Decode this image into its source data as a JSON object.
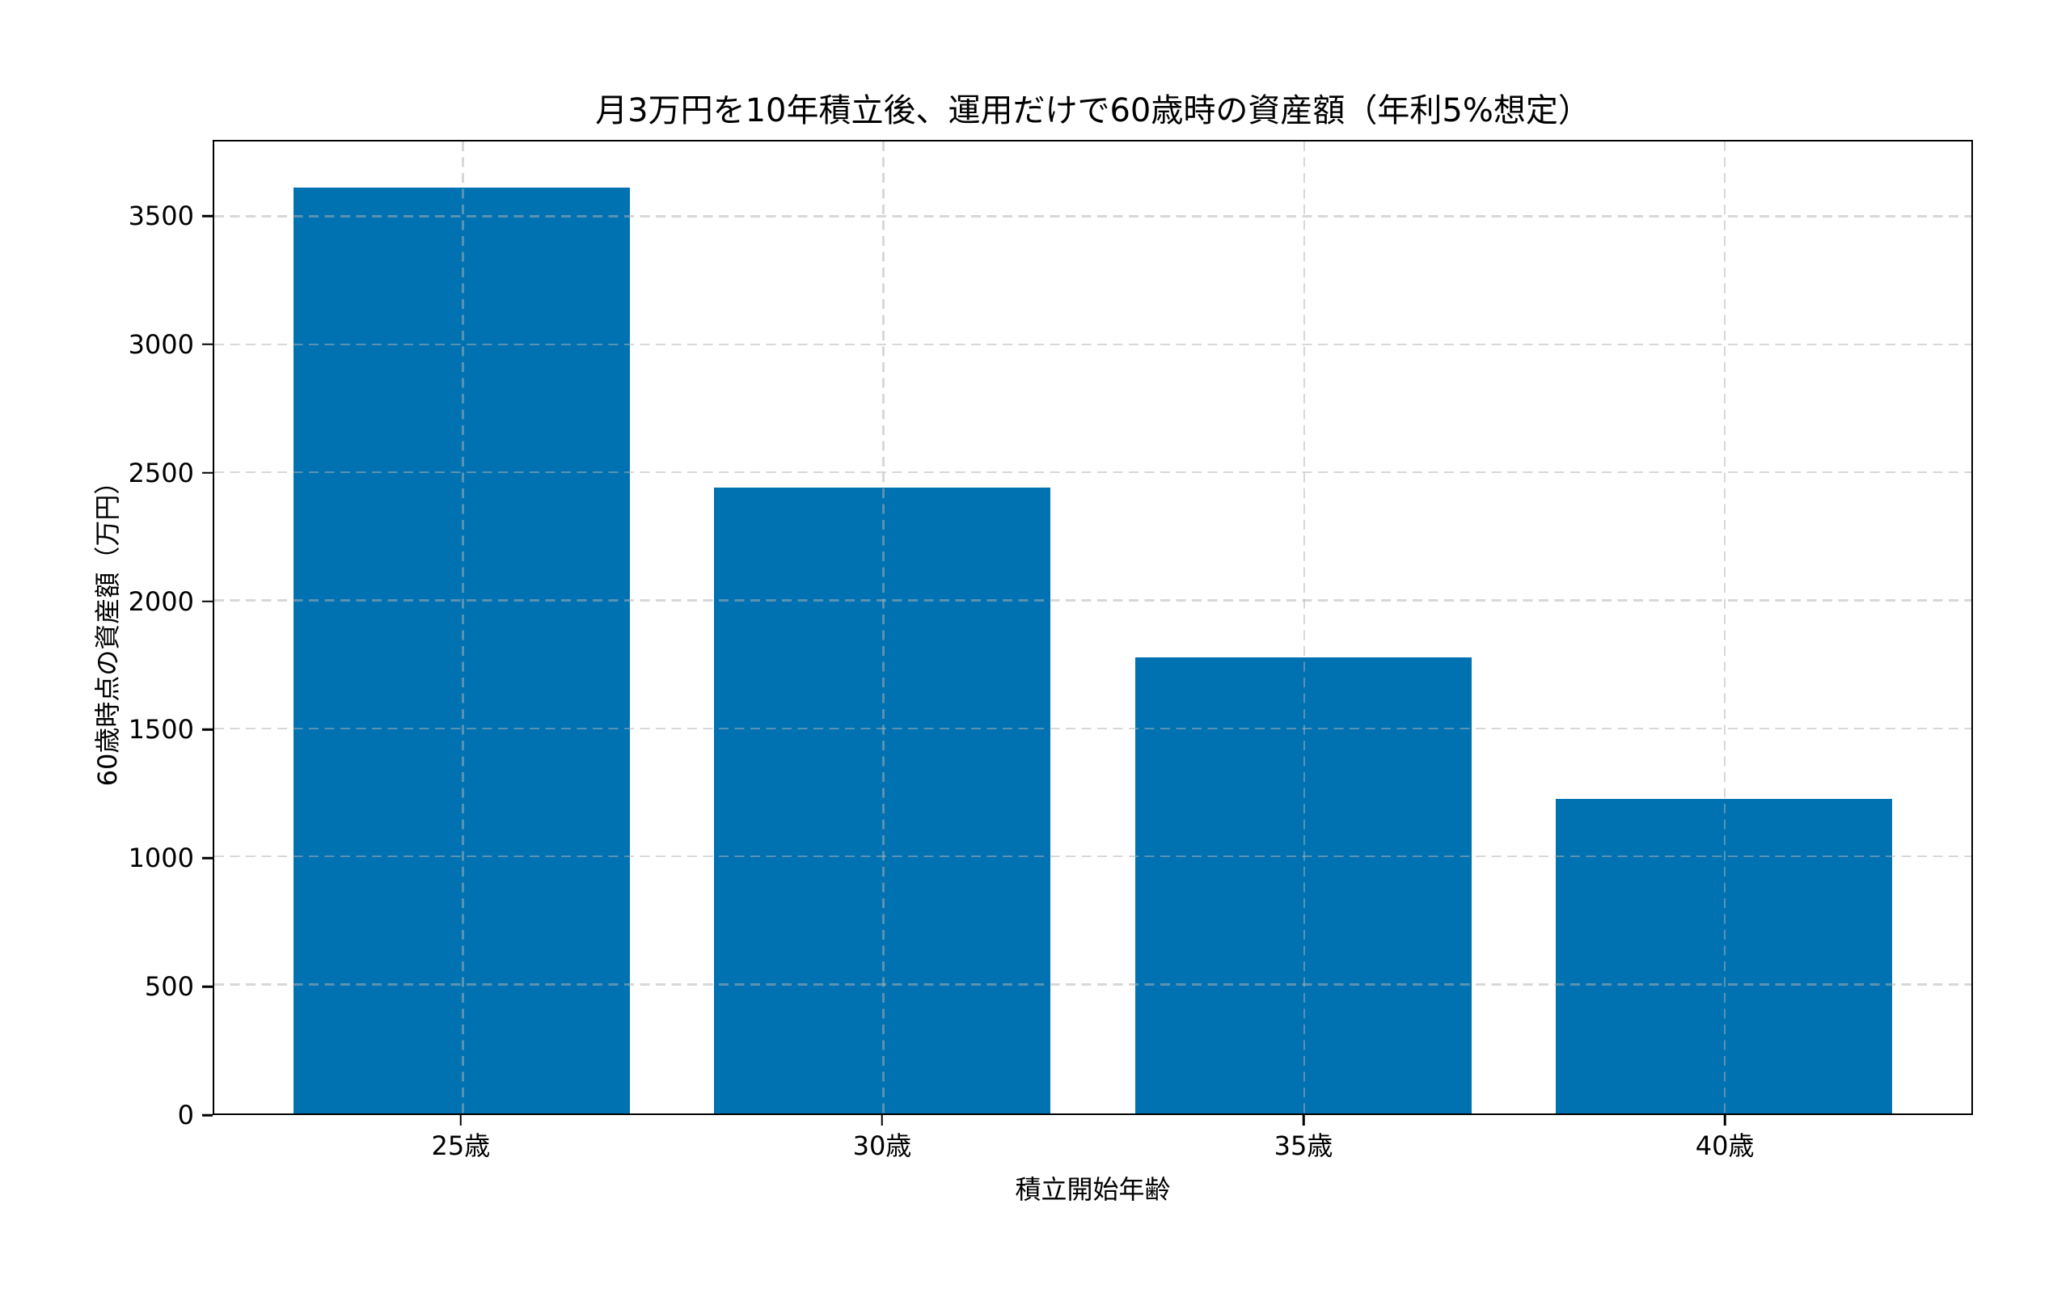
{
  "chart_data": {
    "type": "bar",
    "title": "月3万円を10年積立後、運用だけで60歳時の資産額（年利5%想定）",
    "xlabel": "積立開始年齢",
    "ylabel": "60歳時点の資産額（万円）",
    "categories": [
      "25歳",
      "30歳",
      "35歳",
      "40歳"
    ],
    "values": [
      3615,
      2445,
      1780,
      1230
    ],
    "ylim": [
      0,
      3796
    ],
    "yticks": [
      0,
      500,
      1000,
      1500,
      2000,
      2500,
      3000,
      3500
    ],
    "bar_color": "#0072b2",
    "background_color": "#ffffff",
    "grid": "on",
    "grid_style": "dashed",
    "grid_axes": "both",
    "grid_above_bars": true,
    "legend_position": "none",
    "bar_width_fraction": 0.8,
    "x_positions_offset": 0.589,
    "x_span_units": 4.178
  }
}
